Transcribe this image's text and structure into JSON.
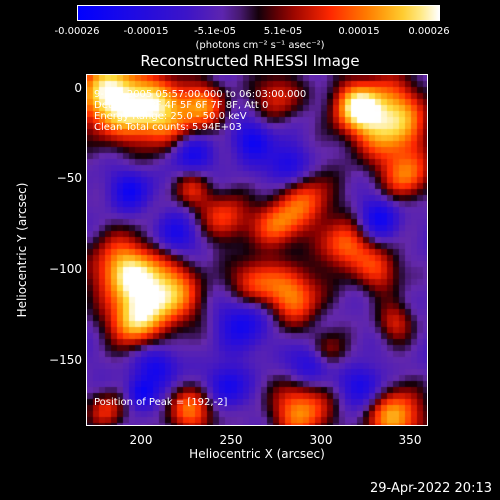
{
  "colorbar": {
    "ticks": [
      "-0.00026",
      "-0.00015",
      "-5.1e-05",
      "5.1e-05",
      "0.00015",
      "0.00026"
    ],
    "units": "(photons cm⁻² s⁻¹ asec⁻²)"
  },
  "plot": {
    "title": "Reconstructed RHESSI Image",
    "xlabel": "Heliocentric X (arcsec)",
    "ylabel": "Heliocentric Y (arcsec)",
    "xticks": [
      "200",
      "250",
      "300",
      "350"
    ],
    "yticks": [
      "0",
      "−50",
      "−100",
      "−150"
    ]
  },
  "annotations": {
    "line1": "9-Nov-2005 05:57:00.000 to 06:03:00.000",
    "line2": "Detectors: 3F 4F 5F 6F 7F 8F, Att 0",
    "line3": "Energy Range: 25.0 - 50.0 keV",
    "line4": "Clean     Total counts: 5.94E+03",
    "peak": "Position of Peak = [192,-2]"
  },
  "footer": {
    "date": "29-Apr-2022 20:13"
  },
  "chart_data": {
    "type": "heatmap",
    "title": "Reconstructed RHESSI Image",
    "xlabel": "Heliocentric X (arcsec)",
    "ylabel": "Heliocentric Y (arcsec)",
    "xlim": [
      163,
      355
    ],
    "ylim": [
      -184,
      8
    ],
    "color_range": [
      -0.00026,
      0.00026
    ],
    "peak": [
      192,
      -2
    ]
  }
}
